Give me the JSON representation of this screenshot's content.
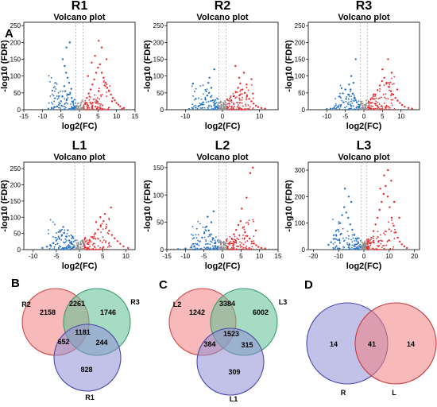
{
  "panels": {
    "a": "A",
    "b": "B",
    "c": "C",
    "d": "D"
  },
  "colors": {
    "down": "#1f6fc4",
    "up": "#e8262b",
    "ns": "#8c8c8c",
    "venn_red": "#f08080",
    "venn_green": "#5fbf93",
    "venn_blue": "#8f8fd6"
  },
  "chart_data": [
    {
      "type": "scatter",
      "id": "R1",
      "label": "R1",
      "title": "Volcano plot",
      "xlabel": "log2(FC)",
      "ylabel": "-log10  (FDR)",
      "xlim": [
        -15,
        15
      ],
      "ylim": [
        0,
        260
      ],
      "xticks": [
        -15,
        -10,
        -5,
        0,
        5,
        10,
        15
      ],
      "yticks": [
        0,
        50,
        100,
        150,
        200,
        250
      ],
      "thresholds": {
        "fc": 1,
        "fdr": 1.3
      },
      "points": {
        "down": [
          [
            -1.3,
            10
          ],
          [
            -1.8,
            22
          ],
          [
            -2.1,
            35
          ],
          [
            -2.5,
            50
          ],
          [
            -2.2,
            62
          ],
          [
            -3.0,
            45
          ],
          [
            -3.4,
            30
          ],
          [
            -3.8,
            55
          ],
          [
            -4.1,
            70
          ],
          [
            -4.6,
            40
          ],
          [
            -5.0,
            25
          ],
          [
            -5.5,
            15
          ],
          [
            -6.0,
            10
          ],
          [
            -6.8,
            8
          ],
          [
            -7.5,
            5
          ],
          [
            -2.8,
            80
          ],
          [
            -3.2,
            95
          ],
          [
            -3.6,
            110
          ],
          [
            -4.0,
            130
          ],
          [
            -4.5,
            150
          ],
          [
            -2.6,
            200
          ],
          [
            -3.5,
            185
          ],
          [
            -4.8,
            12
          ],
          [
            -1.6,
            5
          ],
          [
            -2.0,
            3
          ]
        ],
        "up": [
          [
            1.2,
            8
          ],
          [
            1.6,
            20
          ],
          [
            2.0,
            35
          ],
          [
            2.5,
            48
          ],
          [
            3.0,
            60
          ],
          [
            3.5,
            75
          ],
          [
            4.0,
            90
          ],
          [
            4.5,
            110
          ],
          [
            5.0,
            125
          ],
          [
            5.5,
            135
          ],
          [
            6.0,
            110
          ],
          [
            6.5,
            95
          ],
          [
            7.0,
            80
          ],
          [
            7.5,
            65
          ],
          [
            8.0,
            55
          ],
          [
            8.5,
            45
          ],
          [
            9.0,
            35
          ],
          [
            9.5,
            28
          ],
          [
            10.0,
            20
          ],
          [
            10.5,
            15
          ],
          [
            11.0,
            10
          ],
          [
            12.0,
            5
          ],
          [
            4.2,
            160
          ],
          [
            6.0,
            185
          ],
          [
            5.2,
            205
          ],
          [
            7.3,
            150
          ],
          [
            3.3,
            140
          ],
          [
            2.3,
            100
          ],
          [
            8.8,
            25
          ],
          [
            11.5,
            3
          ]
        ]
      }
    },
    {
      "type": "scatter",
      "id": "R2",
      "label": "R2",
      "title": "Volcano plot",
      "xlabel": "log2(FC)",
      "ylabel": "-log10  (FDR)",
      "xlim": [
        -15,
        15
      ],
      "ylim": [
        0,
        260
      ],
      "xticks": [
        -10,
        0,
        10
      ],
      "yticks": [
        0,
        50,
        100,
        150,
        200,
        250
      ],
      "thresholds": {
        "fc": 1,
        "fdr": 1.3
      },
      "points": {
        "down": [
          [
            -1.4,
            8
          ],
          [
            -2.0,
            18
          ],
          [
            -2.6,
            28
          ],
          [
            -3.1,
            38
          ],
          [
            -3.6,
            50
          ],
          [
            -4.1,
            42
          ],
          [
            -4.6,
            30
          ],
          [
            -5.2,
            22
          ],
          [
            -5.8,
            15
          ],
          [
            -6.5,
            10
          ],
          [
            -7.2,
            6
          ],
          [
            -8.0,
            4
          ],
          [
            -9.0,
            2
          ],
          [
            -3.0,
            65
          ],
          [
            -3.8,
            80
          ],
          [
            -4.4,
            55
          ],
          [
            -2.2,
            120
          ],
          [
            -3.5,
            95
          ]
        ],
        "up": [
          [
            1.3,
            8
          ],
          [
            1.8,
            18
          ],
          [
            2.4,
            28
          ],
          [
            3.0,
            40
          ],
          [
            3.6,
            52
          ],
          [
            4.2,
            65
          ],
          [
            4.8,
            78
          ],
          [
            5.4,
            60
          ],
          [
            6.0,
            50
          ],
          [
            6.6,
            40
          ],
          [
            7.2,
            32
          ],
          [
            7.8,
            25
          ],
          [
            8.4,
            18
          ],
          [
            9.0,
            12
          ],
          [
            9.6,
            8
          ],
          [
            10.5,
            5
          ],
          [
            11.5,
            3
          ],
          [
            4.5,
            95
          ],
          [
            5.8,
            110
          ],
          [
            3.5,
            130
          ],
          [
            6.5,
            75
          ],
          [
            8.2,
            48
          ]
        ]
      }
    },
    {
      "type": "scatter",
      "id": "R3",
      "label": "R3",
      "title": "Volcano plot",
      "xlabel": "log2(FC)",
      "ylabel": "-log10  (FDR)",
      "xlim": [
        -15,
        15
      ],
      "ylim": [
        0,
        260
      ],
      "xticks": [
        -10,
        -5,
        0,
        5,
        10
      ],
      "yticks": [
        0,
        50,
        100,
        150,
        200,
        250
      ],
      "thresholds": {
        "fc": 1,
        "fdr": 1.3
      },
      "points": {
        "down": [
          [
            -1.3,
            10
          ],
          [
            -1.9,
            22
          ],
          [
            -2.5,
            35
          ],
          [
            -3.0,
            48
          ],
          [
            -3.6,
            60
          ],
          [
            -4.2,
            45
          ],
          [
            -4.8,
            32
          ],
          [
            -5.5,
            22
          ],
          [
            -6.2,
            14
          ],
          [
            -7.0,
            9
          ],
          [
            -8.0,
            5
          ],
          [
            -9.0,
            3
          ],
          [
            -10.0,
            2
          ],
          [
            -2.8,
            80
          ],
          [
            -3.4,
            100
          ],
          [
            -4.0,
            75
          ],
          [
            -2.2,
            150
          ],
          [
            -5.0,
            60
          ]
        ],
        "up": [
          [
            1.3,
            8
          ],
          [
            1.9,
            20
          ],
          [
            2.5,
            32
          ],
          [
            3.1,
            45
          ],
          [
            3.7,
            58
          ],
          [
            4.3,
            72
          ],
          [
            4.9,
            85
          ],
          [
            5.5,
            95
          ],
          [
            6.1,
            80
          ],
          [
            6.7,
            68
          ],
          [
            7.3,
            55
          ],
          [
            7.9,
            45
          ],
          [
            8.5,
            35
          ],
          [
            9.1,
            27
          ],
          [
            9.7,
            20
          ],
          [
            10.3,
            14
          ],
          [
            11.0,
            9
          ],
          [
            12.0,
            5
          ],
          [
            13.0,
            3
          ],
          [
            5.0,
            120
          ],
          [
            6.5,
            150
          ],
          [
            7.5,
            110
          ],
          [
            9.0,
            60
          ]
        ]
      }
    },
    {
      "type": "scatter",
      "id": "L1",
      "label": "L1",
      "title": "Volcano plot",
      "xlabel": "log2(FC)",
      "ylabel": "-log10  (FDR)",
      "xlim": [
        -12,
        12
      ],
      "ylim": [
        0,
        270
      ],
      "xticks": [
        -10,
        -5,
        0,
        5,
        10
      ],
      "yticks": [
        0,
        50,
        100,
        150,
        200,
        250
      ],
      "thresholds": {
        "fc": 1,
        "fdr": 1.3
      },
      "points": {
        "down": [
          [
            -1.2,
            8
          ],
          [
            -1.7,
            18
          ],
          [
            -2.2,
            28
          ],
          [
            -2.8,
            40
          ],
          [
            -3.3,
            52
          ],
          [
            -3.8,
            45
          ],
          [
            -4.4,
            36
          ],
          [
            -5.0,
            28
          ],
          [
            -5.6,
            20
          ],
          [
            -6.3,
            14
          ],
          [
            -7.0,
            9
          ],
          [
            -8.0,
            5
          ],
          [
            -2.5,
            60
          ],
          [
            -3.5,
            70
          ],
          [
            -4.2,
            55
          ]
        ],
        "up": [
          [
            1.2,
            8
          ],
          [
            1.7,
            18
          ],
          [
            2.2,
            28
          ],
          [
            2.8,
            38
          ],
          [
            3.4,
            50
          ],
          [
            4.0,
            62
          ],
          [
            4.6,
            75
          ],
          [
            5.2,
            88
          ],
          [
            5.8,
            70
          ],
          [
            6.4,
            58
          ],
          [
            7.0,
            45
          ],
          [
            7.6,
            35
          ],
          [
            8.2,
            26
          ],
          [
            8.8,
            18
          ],
          [
            9.5,
            10
          ],
          [
            10.5,
            5
          ],
          [
            5.5,
            110
          ],
          [
            6.8,
            130
          ],
          [
            4.5,
            100
          ],
          [
            3.6,
            85
          ]
        ]
      }
    },
    {
      "type": "scatter",
      "id": "L2",
      "label": "L2",
      "title": "Volcano plot",
      "xlabel": "log2(FC)",
      "ylabel": "-log10  (FDR)",
      "xlim": [
        -15,
        15
      ],
      "ylim": [
        0,
        160
      ],
      "xticks": [
        -15,
        -10,
        -5,
        0,
        5,
        10,
        15
      ],
      "yticks": [
        0,
        50,
        100,
        150
      ],
      "thresholds": {
        "fc": 1,
        "fdr": 1.3
      },
      "points": {
        "down": [
          [
            -1.3,
            5
          ],
          [
            -1.9,
            12
          ],
          [
            -2.5,
            20
          ],
          [
            -3.1,
            28
          ],
          [
            -3.7,
            35
          ],
          [
            -4.3,
            42
          ],
          [
            -4.9,
            30
          ],
          [
            -5.5,
            22
          ],
          [
            -6.1,
            15
          ],
          [
            -6.8,
            10
          ],
          [
            -7.6,
            6
          ],
          [
            -8.5,
            4
          ],
          [
            -10.0,
            2
          ],
          [
            -12.0,
            1
          ],
          [
            -3.0,
            50
          ],
          [
            -4.0,
            60
          ],
          [
            -2.4,
            70
          ]
        ],
        "up": [
          [
            1.3,
            5
          ],
          [
            1.9,
            12
          ],
          [
            2.5,
            20
          ],
          [
            3.1,
            28
          ],
          [
            3.7,
            36
          ],
          [
            4.3,
            45
          ],
          [
            4.9,
            52
          ],
          [
            5.5,
            40
          ],
          [
            6.1,
            32
          ],
          [
            6.7,
            25
          ],
          [
            7.3,
            20
          ],
          [
            7.9,
            15
          ],
          [
            8.5,
            11
          ],
          [
            9.1,
            8
          ],
          [
            9.7,
            5
          ],
          [
            10.5,
            3
          ],
          [
            11.5,
            2
          ],
          [
            7.5,
            140
          ],
          [
            8.2,
            150
          ],
          [
            6.5,
            95
          ],
          [
            5.2,
            75
          ],
          [
            9.0,
            35
          ]
        ]
      }
    },
    {
      "type": "scatter",
      "id": "L3",
      "label": "L3",
      "title": "Volcano plot",
      "xlabel": "log2(FC)",
      "ylabel": "-log10  (FDR)",
      "xlim": [
        -22,
        22
      ],
      "ylim": [
        0,
        330
      ],
      "xticks": [
        -20,
        -10,
        0,
        10,
        20
      ],
      "yticks": [
        0,
        100,
        200,
        300
      ],
      "thresholds": {
        "fc": 1,
        "fdr": 1.3
      },
      "points": {
        "down": [
          [
            -1.4,
            10
          ],
          [
            -2.2,
            25
          ],
          [
            -3.0,
            40
          ],
          [
            -3.8,
            55
          ],
          [
            -4.6,
            75
          ],
          [
            -5.4,
            95
          ],
          [
            -6.2,
            120
          ],
          [
            -7.0,
            140
          ],
          [
            -7.8,
            160
          ],
          [
            -8.6,
            130
          ],
          [
            -9.4,
            100
          ],
          [
            -10.2,
            75
          ],
          [
            -11.0,
            55
          ],
          [
            -12.0,
            40
          ],
          [
            -13.0,
            28
          ],
          [
            -14.0,
            18
          ],
          [
            -6.0,
            200
          ],
          [
            -7.5,
            230
          ],
          [
            -5.0,
            180
          ],
          [
            -9.0,
            60
          ]
        ],
        "up": [
          [
            1.4,
            10
          ],
          [
            2.2,
            25
          ],
          [
            3.0,
            45
          ],
          [
            3.8,
            70
          ],
          [
            4.6,
            95
          ],
          [
            5.4,
            120
          ],
          [
            6.2,
            150
          ],
          [
            7.0,
            180
          ],
          [
            7.8,
            210
          ],
          [
            8.6,
            240
          ],
          [
            9.4,
            200
          ],
          [
            10.2,
            160
          ],
          [
            11.0,
            120
          ],
          [
            11.8,
            90
          ],
          [
            12.6,
            65
          ],
          [
            13.4,
            45
          ],
          [
            14.2,
            30
          ],
          [
            15.0,
            20
          ],
          [
            16.0,
            12
          ],
          [
            17.0,
            6
          ],
          [
            8.0,
            280
          ],
          [
            9.5,
            300
          ],
          [
            10.8,
            260
          ],
          [
            6.5,
            230
          ],
          [
            12.0,
            180
          ],
          [
            14.0,
            120
          ]
        ]
      }
    },
    {
      "type": "venn",
      "id": "B",
      "sets": [
        "R2",
        "R3",
        "R1"
      ],
      "regions": {
        "a_only": "2158",
        "b_only": "1746",
        "c_only": "828",
        "ab": "2261",
        "ac": "652",
        "bc": "244",
        "abc": "1181"
      }
    },
    {
      "type": "venn",
      "id": "C",
      "sets": [
        "L2",
        "L3",
        "L1"
      ],
      "regions": {
        "a_only": "1242",
        "b_only": "6002",
        "c_only": "309",
        "ab": "3384",
        "ac": "384",
        "bc": "315",
        "abc": "1523"
      }
    },
    {
      "type": "venn",
      "id": "D",
      "sets": [
        "R",
        "L"
      ],
      "regions": {
        "a_only": "14",
        "ab": "41",
        "b_only": "14"
      }
    }
  ]
}
